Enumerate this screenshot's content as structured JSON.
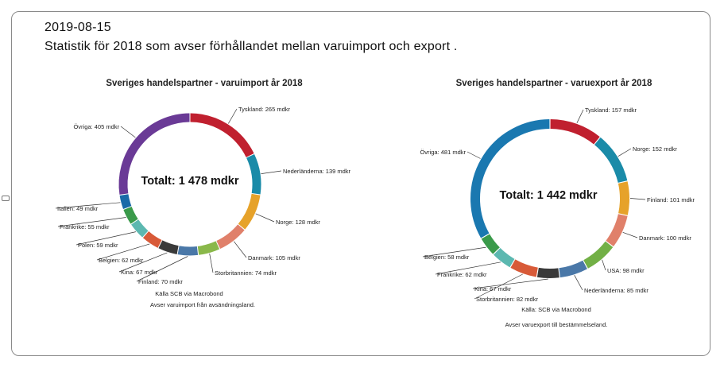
{
  "header": {
    "date": "2019-08-15",
    "description": "Statistik för 2018 som avser förhållandet mellan varuimport och export ."
  },
  "colors": {
    "Tyskland": "#c0202f",
    "Nederländerna": "#1a8ba8",
    "Norge": "#1a8ba8",
    "Finland": "#e6a22a",
    "Danmark": "#e0806a",
    "Storbritannien": "#8ab84a",
    "USA": "#72b046",
    "Kina": "#3a3a3a",
    "Belgien": "#d85a38",
    "Polen": "#5cb8b0",
    "Frankrike": "#5cb8b0",
    "Italien": "#1a6aa8",
    "Övriga": "#6a3a96",
    "Övriga-export": "#1a78b0",
    "Nederländerna-import": "#4a78a8",
    "Frankrike-import": "#3a9a4a",
    "Belgien-export": "#3a9a4a"
  },
  "chart_data": [
    {
      "type": "pie",
      "title": "Sveriges handelspartner - varuimport år 2018",
      "center_label": "Totalt: 1 478 mdkr",
      "unit": "mdkr",
      "slices": [
        {
          "name": "Tyskland",
          "value": 265,
          "label": "Tyskland: 265 mdkr",
          "color": "#c0202f"
        },
        {
          "name": "Nederländerna",
          "value": 139,
          "label": "Nederländerna: 139 mdkr",
          "color": "#1a8ba8"
        },
        {
          "name": "Norge",
          "value": 128,
          "label": "Norge: 128 mdkr",
          "color": "#e6a22a"
        },
        {
          "name": "Danmark",
          "value": 105,
          "label": "Danmark: 105 mdkr",
          "color": "#e0806a"
        },
        {
          "name": "Storbritannien",
          "value": 74,
          "label": "Storbritannien: 74 mdkr",
          "color": "#8ab84a"
        },
        {
          "name": "Finland",
          "value": 70,
          "label": "Finland: 70 mdkr",
          "color": "#4a78a8"
        },
        {
          "name": "Kina",
          "value": 67,
          "label": "Kina: 67 mdkr",
          "color": "#3a3a3a"
        },
        {
          "name": "Belgien",
          "value": 62,
          "label": "Belgien: 62 mdkr",
          "color": "#d85a38"
        },
        {
          "name": "Polen",
          "value": 59,
          "label": "Polen: 59 mdkr",
          "color": "#5cb8b0"
        },
        {
          "name": "Frankrike",
          "value": 55,
          "label": "Frankrike: 55 mdkr",
          "color": "#3a9a4a"
        },
        {
          "name": "Italien",
          "value": 49,
          "label": "Italien: 49 mdkr",
          "color": "#1a6aa8"
        },
        {
          "name": "Övriga",
          "value": 405,
          "label": "Övriga: 405 mdkr",
          "color": "#6a3a96"
        }
      ],
      "source": "Källa SCB via Macrobond",
      "note": "Avser varuimport från avsändningsland."
    },
    {
      "type": "pie",
      "title": "Sveriges handelspartner - varuexport år 2018",
      "center_label": "Totalt: 1 442 mdkr",
      "unit": "mdkr",
      "slices": [
        {
          "name": "Tyskland",
          "value": 157,
          "label": "Tyskland: 157 mdkr",
          "color": "#c0202f"
        },
        {
          "name": "Norge",
          "value": 152,
          "label": "Norge: 152 mdkr",
          "color": "#1a8ba8"
        },
        {
          "name": "Finland",
          "value": 101,
          "label": "Finland: 101 mdkr",
          "color": "#e6a22a"
        },
        {
          "name": "Danmark",
          "value": 100,
          "label": "Danmark: 100 mdkr",
          "color": "#e0806a"
        },
        {
          "name": "USA",
          "value": 98,
          "label": "USA: 98 mdkr",
          "color": "#72b046"
        },
        {
          "name": "Nederländerna",
          "value": 85,
          "label": "Nederländerna: 85 mdkr",
          "color": "#4a78a8"
        },
        {
          "name": "Kina",
          "value": 67,
          "label": "Kina: 67 mdkr",
          "color": "#3a3a3a"
        },
        {
          "name": "Storbritannien",
          "value": 82,
          "label": "Storbritannien: 82 mdkr",
          "color": "#d85a38"
        },
        {
          "name": "Frankrike",
          "value": 62,
          "label": "Frankrike: 62 mdkr",
          "color": "#5cb8b0"
        },
        {
          "name": "Belgien",
          "value": 58,
          "label": "Belgien: 58 mdkr",
          "color": "#3a9a4a"
        },
        {
          "name": "Övriga",
          "value": 481,
          "label": "Övriga: 481 mdkr",
          "color": "#1a78b0"
        }
      ],
      "source": "Källa: SCB via Macrobond",
      "note": "Avser varuexport till bestämmelseland."
    }
  ]
}
